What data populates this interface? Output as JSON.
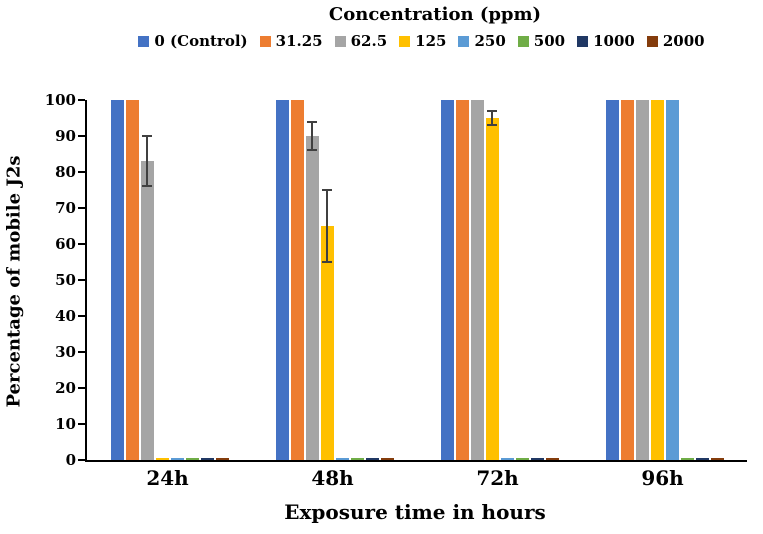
{
  "chart_data": {
    "type": "bar",
    "title": "Concentration (ppm)",
    "xlabel": "Exposure time in hours",
    "ylabel": "Percentage of mobile J2s",
    "categories": [
      "24h",
      "48h",
      "72h",
      "96h"
    ],
    "series": [
      {
        "name": "0 (Control)",
        "color": "#4472C4",
        "values": [
          100,
          100,
          100,
          100
        ],
        "errors": [
          0,
          0,
          0,
          0
        ]
      },
      {
        "name": "31.25",
        "color": "#ED7D31",
        "values": [
          100,
          100,
          100,
          100
        ],
        "errors": [
          0,
          0,
          0,
          0
        ]
      },
      {
        "name": "62.5",
        "color": "#A5A5A5",
        "values": [
          83,
          90,
          100,
          100
        ],
        "errors": [
          7,
          4,
          0,
          0
        ]
      },
      {
        "name": "125",
        "color": "#FFC000",
        "values": [
          0.5,
          65,
          95,
          100
        ],
        "errors": [
          0,
          10,
          2,
          0
        ]
      },
      {
        "name": "250",
        "color": "#5B9BD5",
        "values": [
          0.5,
          0.5,
          0.5,
          100
        ],
        "errors": [
          0,
          0,
          0,
          0
        ]
      },
      {
        "name": "500",
        "color": "#70AD47",
        "values": [
          0.5,
          0.5,
          0.5,
          0.5
        ],
        "errors": [
          0,
          0,
          0,
          0
        ]
      },
      {
        "name": "1000",
        "color": "#203864",
        "values": [
          0.5,
          0.5,
          0.5,
          0.5
        ],
        "errors": [
          0,
          0,
          0,
          0
        ]
      },
      {
        "name": "2000",
        "color": "#843C0C",
        "values": [
          0.5,
          0.5,
          0.5,
          0.5
        ],
        "errors": [
          0,
          0,
          0,
          0
        ]
      }
    ],
    "ylim": [
      0,
      100
    ],
    "yticks": [
      0,
      10,
      20,
      30,
      40,
      50,
      60,
      70,
      80,
      90,
      100
    ],
    "legend_position": "top",
    "grid": false,
    "error_bar_color": "#404040"
  }
}
